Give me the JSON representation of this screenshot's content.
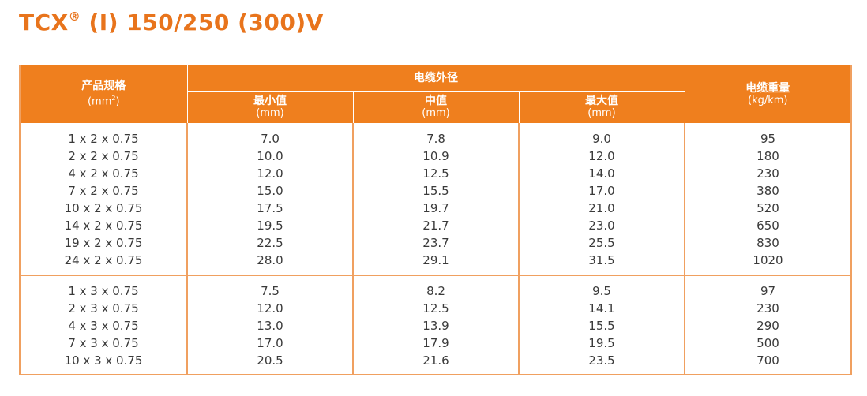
{
  "title": {
    "brand": "TCX",
    "mark": "®",
    "rest": "(I) 150/250 (300)V"
  },
  "table": {
    "headers": {
      "spec_label": "产品规格",
      "spec_unit_base": "(mm",
      "spec_unit_sup": "2",
      "spec_unit_end": ")",
      "diameter_group": "电缆外径",
      "min_label": "最小值",
      "min_unit": "(mm)",
      "mid_label": "中值",
      "mid_unit": "(mm)",
      "max_label": "最大值",
      "max_unit": "(mm)",
      "weight_label": "电缆重量",
      "weight_unit": "(kg/km)"
    },
    "group1": [
      {
        "spec": "1 x 2 x 0.75",
        "min": "7.0",
        "mid": "7.8",
        "max": "9.0",
        "weight": "95"
      },
      {
        "spec": "2 x 2 x 0.75",
        "min": "10.0",
        "mid": "10.9",
        "max": "12.0",
        "weight": "180"
      },
      {
        "spec": "4 x 2 x 0.75",
        "min": "12.0",
        "mid": "12.5",
        "max": "14.0",
        "weight": "230"
      },
      {
        "spec": "7 x 2 x 0.75",
        "min": "15.0",
        "mid": "15.5",
        "max": "17.0",
        "weight": "380"
      },
      {
        "spec": "10 x 2 x 0.75",
        "min": "17.5",
        "mid": "19.7",
        "max": "21.0",
        "weight": "520"
      },
      {
        "spec": "14 x 2 x 0.75",
        "min": "19.5",
        "mid": "21.7",
        "max": "23.0",
        "weight": "650"
      },
      {
        "spec": "19 x 2 x 0.75",
        "min": "22.5",
        "mid": "23.7",
        "max": "25.5",
        "weight": "830"
      },
      {
        "spec": "24 x 2 x 0.75",
        "min": "28.0",
        "mid": "29.1",
        "max": "31.5",
        "weight": "1020"
      }
    ],
    "group2": [
      {
        "spec": "1 x 3 x 0.75",
        "min": "7.5",
        "mid": "8.2",
        "max": "9.5",
        "weight": "97"
      },
      {
        "spec": "2 x 3 x 0.75",
        "min": "12.0",
        "mid": "12.5",
        "max": "14.1",
        "weight": "230"
      },
      {
        "spec": "4 x 3 x 0.75",
        "min": "13.0",
        "mid": "13.9",
        "max": "15.5",
        "weight": "290"
      },
      {
        "spec": "7 x 3 x 0.75",
        "min": "17.0",
        "mid": "17.9",
        "max": "19.5",
        "weight": "500"
      },
      {
        "spec": "10 x 3 x 0.75",
        "min": "20.5",
        "mid": "21.6",
        "max": "23.5",
        "weight": "700"
      }
    ]
  },
  "colors": {
    "accent": "#ef7f1e",
    "title": "#e8741c",
    "border": "#f0a060",
    "text": "#3a3a3a"
  }
}
